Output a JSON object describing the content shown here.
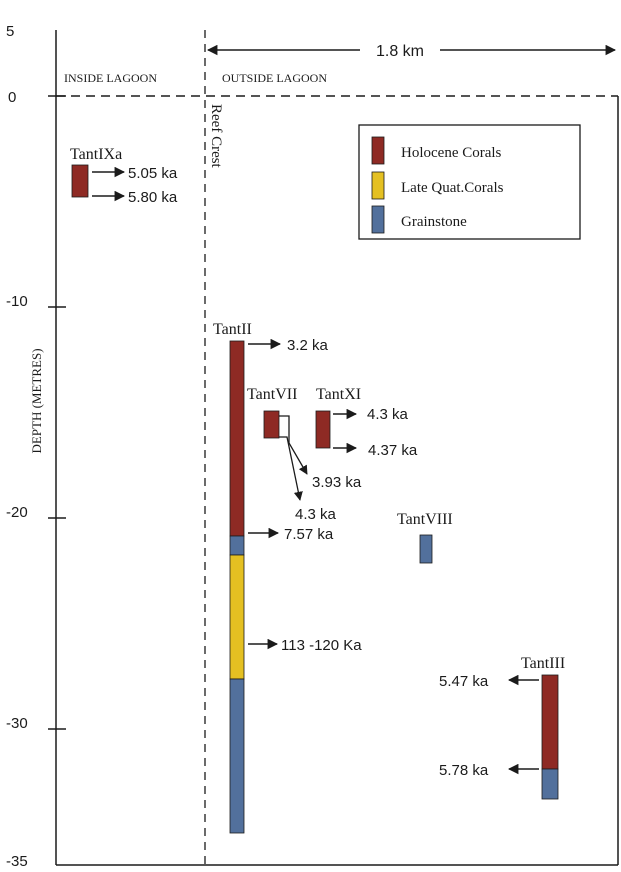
{
  "axis": {
    "label": "DEPTH (METRES)",
    "ticks": [
      "5",
      "0",
      "-10",
      "-20",
      "-30",
      "-35"
    ]
  },
  "regions": {
    "inside": "INSIDE LAGOON",
    "outside": "OUTSIDE LAGOON",
    "reef_crest": "Reef Crest"
  },
  "scale": "1.8 km",
  "legend": [
    {
      "label": "Holocene Corals",
      "color": "#8e2a24"
    },
    {
      "label": "Late Quat.Corals",
      "color": "#e4c022"
    },
    {
      "label": "Grainstone",
      "color": "#52709c"
    }
  ],
  "cores": [
    {
      "name": "TantIXa",
      "intervals": [
        {
          "unit": "Holocene Corals",
          "top_m": -3.2,
          "base_m": -4.7
        }
      ],
      "ages": [
        "5.05 ka",
        "5.80 ka"
      ]
    },
    {
      "name": "TantII",
      "intervals": [
        {
          "unit": "Holocene Corals",
          "top_m": -11.6,
          "base_m": -20.9
        },
        {
          "unit": "Grainstone",
          "top_m": -20.9,
          "base_m": -21.8
        },
        {
          "unit": "Late Quat.Corals",
          "top_m": -21.8,
          "base_m": -27.6
        },
        {
          "unit": "Grainstone",
          "top_m": -27.6,
          "base_m": -34.4
        }
      ],
      "ages": [
        "3.2 ka",
        "7.57 ka",
        "113 -120 Ka"
      ]
    },
    {
      "name": "TantVII",
      "intervals": [
        {
          "unit": "Holocene Corals",
          "top_m": -15.2,
          "base_m": -16.5
        }
      ],
      "ages": [
        "3.93 ka",
        "4.3 ka"
      ]
    },
    {
      "name": "TantXI",
      "intervals": [
        {
          "unit": "Holocene Corals",
          "top_m": -15.2,
          "base_m": -16.8
        }
      ],
      "ages": [
        "4.3 ka",
        "4.37 ka"
      ]
    },
    {
      "name": "TantVIII",
      "intervals": [
        {
          "unit": "Grainstone",
          "top_m": -20.7,
          "base_m": -22.1
        }
      ],
      "ages": []
    },
    {
      "name": "TantIII",
      "intervals": [
        {
          "unit": "Holocene Corals",
          "top_m": -27.5,
          "base_m": -31.8
        },
        {
          "unit": "Grainstone",
          "top_m": -31.8,
          "base_m": -33.2
        }
      ],
      "ages": [
        "5.47 ka",
        "5.78 ka"
      ]
    }
  ]
}
